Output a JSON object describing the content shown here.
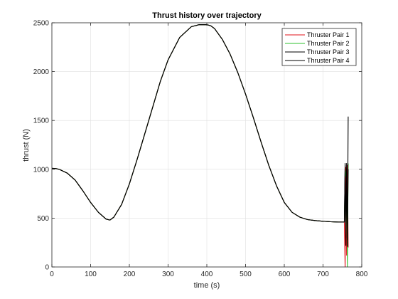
{
  "chart_data": {
    "type": "line",
    "title": "Thrust history over trajectory",
    "xlabel": "time (s)",
    "ylabel": "thrust (N)",
    "xlim": [
      0,
      800
    ],
    "ylim": [
      0,
      2500
    ],
    "xticks": [
      0,
      100,
      200,
      300,
      400,
      500,
      600,
      700,
      800
    ],
    "yticks": [
      0,
      500,
      1000,
      1500,
      2000,
      2500
    ],
    "grid": true,
    "legend_position": "top-right",
    "series": [
      {
        "name": "Thruster Pair 1",
        "color": "#e0131b",
        "x": [
          0,
          10,
          20,
          40,
          60,
          80,
          100,
          120,
          140,
          150,
          160,
          180,
          200,
          220,
          250,
          280,
          300,
          330,
          360,
          380,
          400,
          410,
          420,
          440,
          460,
          480,
          500,
          520,
          540,
          560,
          580,
          600,
          620,
          640,
          660,
          680,
          700,
          720,
          740,
          755,
          757,
          759,
          761,
          763,
          765
        ],
        "y": [
          1010,
          1008,
          998,
          960,
          890,
          780,
          660,
          560,
          490,
          480,
          510,
          640,
          850,
          1100,
          1500,
          1900,
          2120,
          2350,
          2460,
          2480,
          2480,
          2470,
          2440,
          2330,
          2180,
          1990,
          1770,
          1530,
          1280,
          1040,
          830,
          660,
          560,
          510,
          485,
          475,
          468,
          463,
          460,
          460,
          0,
          1020,
          120,
          1040,
          200
        ]
      },
      {
        "name": "Thruster Pair 2",
        "color": "#2ec12e",
        "x": [
          0,
          10,
          20,
          40,
          60,
          80,
          100,
          120,
          140,
          150,
          160,
          180,
          200,
          220,
          250,
          280,
          300,
          330,
          360,
          380,
          400,
          410,
          420,
          440,
          460,
          480,
          500,
          520,
          540,
          560,
          580,
          600,
          620,
          640,
          660,
          680,
          700,
          720,
          740,
          755,
          757,
          759,
          761,
          763,
          765
        ],
        "y": [
          1010,
          1008,
          998,
          960,
          890,
          780,
          660,
          560,
          490,
          480,
          510,
          640,
          850,
          1100,
          1500,
          1900,
          2120,
          2350,
          2460,
          2480,
          2480,
          2470,
          2440,
          2330,
          2180,
          1990,
          1770,
          1530,
          1280,
          1040,
          830,
          660,
          560,
          510,
          485,
          475,
          468,
          463,
          460,
          460,
          900,
          950,
          1010,
          0,
          1060
        ]
      },
      {
        "name": "Thruster Pair 3",
        "color": "#000000",
        "x": [
          0,
          10,
          20,
          40,
          60,
          80,
          100,
          120,
          140,
          150,
          160,
          180,
          200,
          220,
          250,
          280,
          300,
          330,
          360,
          380,
          400,
          410,
          420,
          440,
          460,
          480,
          500,
          520,
          540,
          560,
          580,
          600,
          620,
          640,
          660,
          680,
          700,
          720,
          740,
          755,
          757,
          759,
          761,
          763,
          765
        ],
        "y": [
          1010,
          1008,
          998,
          960,
          890,
          780,
          660,
          560,
          490,
          480,
          510,
          640,
          850,
          1100,
          1500,
          1900,
          2120,
          2350,
          2460,
          2480,
          2480,
          2470,
          2440,
          2330,
          2180,
          1990,
          1770,
          1530,
          1280,
          1040,
          830,
          660,
          560,
          510,
          485,
          475,
          468,
          463,
          460,
          460,
          1060,
          220,
          1000,
          210,
          1540
        ]
      },
      {
        "name": "Thruster Pair 4",
        "color": "#000000",
        "x": [
          0,
          10,
          20,
          40,
          60,
          80,
          100,
          120,
          140,
          150,
          160,
          180,
          200,
          220,
          250,
          280,
          300,
          330,
          360,
          380,
          400,
          410,
          420,
          440,
          460,
          480,
          500,
          520,
          540,
          560,
          580,
          600,
          620,
          640,
          660,
          680,
          700,
          720,
          740,
          755,
          757,
          759,
          761,
          763,
          765
        ],
        "y": [
          1010,
          1008,
          998,
          960,
          890,
          780,
          660,
          560,
          490,
          480,
          510,
          640,
          850,
          1100,
          1500,
          1900,
          2120,
          2350,
          2460,
          2480,
          2480,
          2470,
          2440,
          2330,
          2180,
          1990,
          1770,
          1530,
          1280,
          1040,
          830,
          660,
          560,
          510,
          485,
          475,
          468,
          463,
          460,
          460,
          1040,
          300,
          1060,
          280,
          1000
        ]
      }
    ]
  }
}
